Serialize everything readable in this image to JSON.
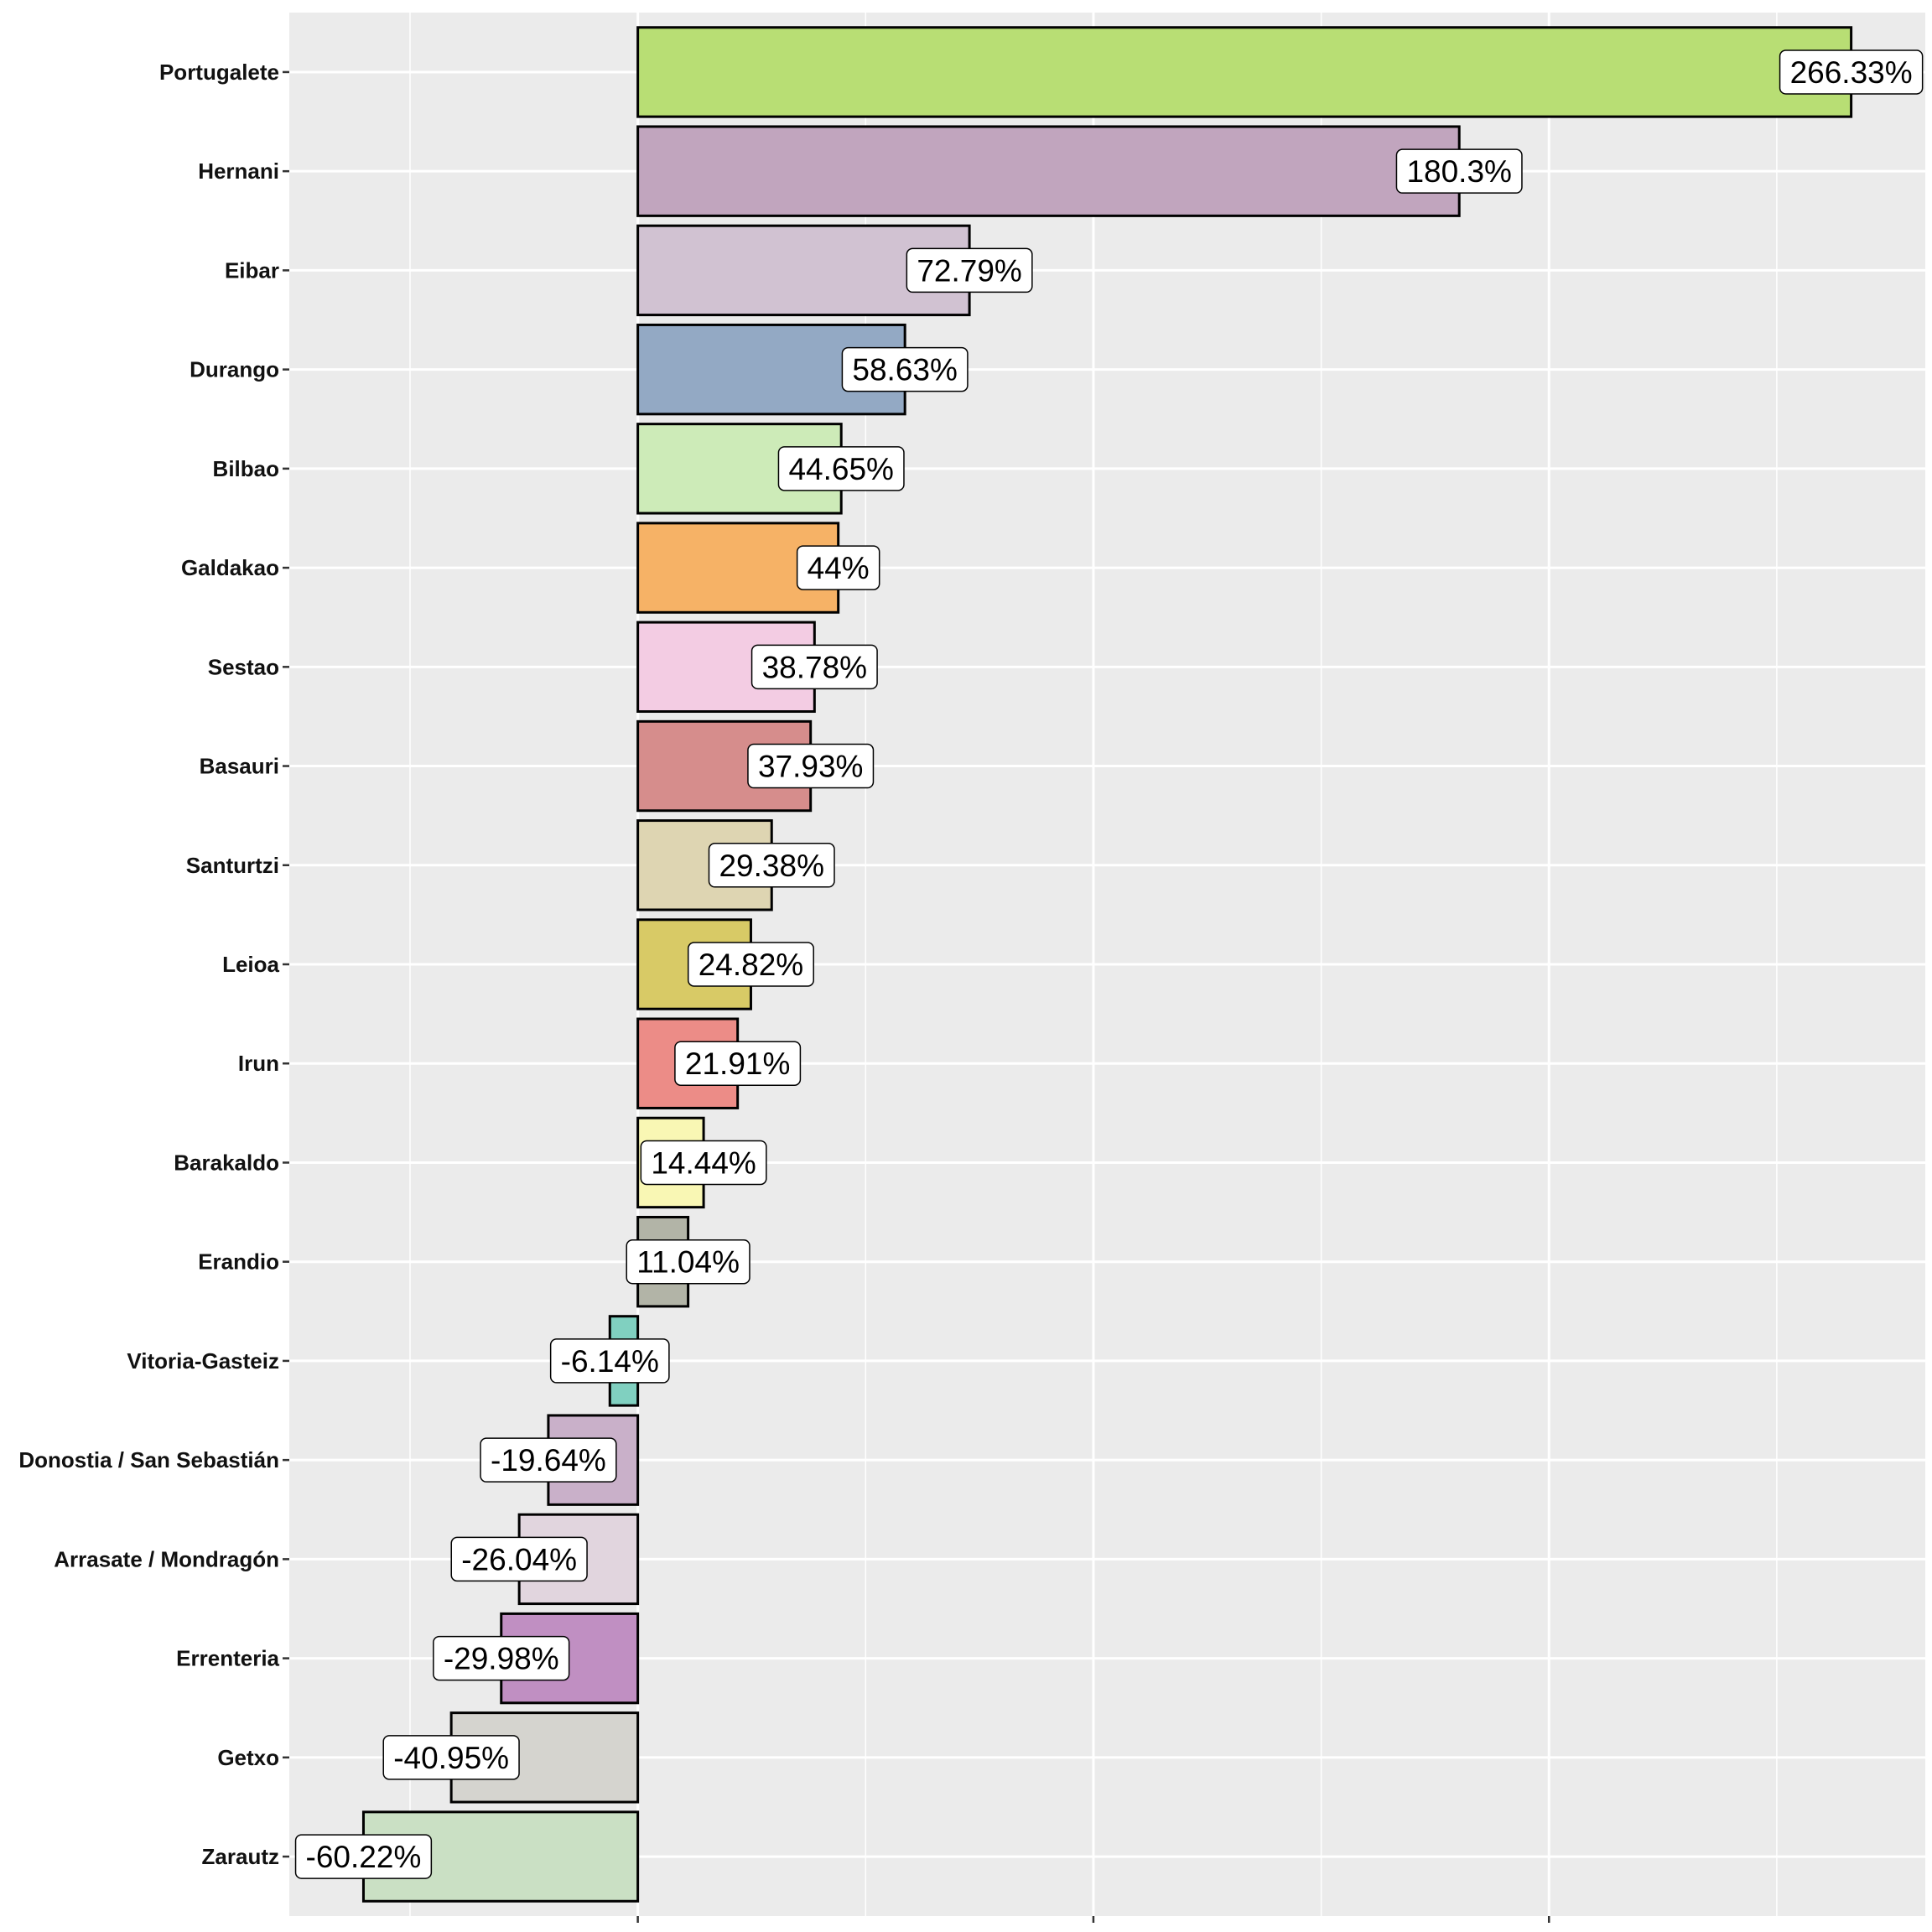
{
  "chart_data": {
    "type": "bar",
    "orientation": "horizontal",
    "title": "",
    "xlabel": "",
    "ylabel": "",
    "xlim": [
      -76.5,
      282.6
    ],
    "x_major_ticks": [
      0,
      100,
      200
    ],
    "x_minor_grid": [
      -50,
      50,
      150,
      250
    ],
    "grid": true,
    "categories": [
      "Portugalete",
      "Hernani",
      "Eibar",
      "Durango",
      "Bilbao",
      "Galdakao",
      "Sestao",
      "Basauri",
      "Santurtzi",
      "Leioa",
      "Irun",
      "Barakaldo",
      "Erandio",
      "Vitoria-Gasteiz",
      "Donostia / San Sebastián",
      "Arrasate / Mondragón",
      "Errenteria",
      "Getxo",
      "Zarautz"
    ],
    "values": [
      266.33,
      180.3,
      72.79,
      58.63,
      44.65,
      44,
      38.78,
      37.93,
      29.38,
      24.82,
      21.91,
      14.44,
      11.04,
      -6.14,
      -19.64,
      -26.04,
      -29.98,
      -40.95,
      -60.22
    ],
    "labels": [
      "266.33%",
      "180.3%",
      "72.79%",
      "58.63%",
      "44.65%",
      "44%",
      "38.78%",
      "37.93%",
      "29.38%",
      "24.82%",
      "21.91%",
      "14.44%",
      "11.04%",
      "-6.14%",
      "-19.64%",
      "-26.04%",
      "-29.98%",
      "-40.95%",
      "-60.22%"
    ],
    "colors": [
      "#b8de74",
      "#c1a5be",
      "#d1c2d2",
      "#93a9c4",
      "#cdebb8",
      "#f6b266",
      "#f3cce3",
      "#d68d8c",
      "#ded5b2",
      "#d8ca66",
      "#ec8c87",
      "#f9f7b4",
      "#b2b4a7",
      "#80d0c0",
      "#c9b0c9",
      "#e1d5de",
      "#c08fc2",
      "#d5d4cf",
      "#cae0c4"
    ],
    "panel_background": "#ebebeb",
    "grid_color": "#ffffff"
  }
}
